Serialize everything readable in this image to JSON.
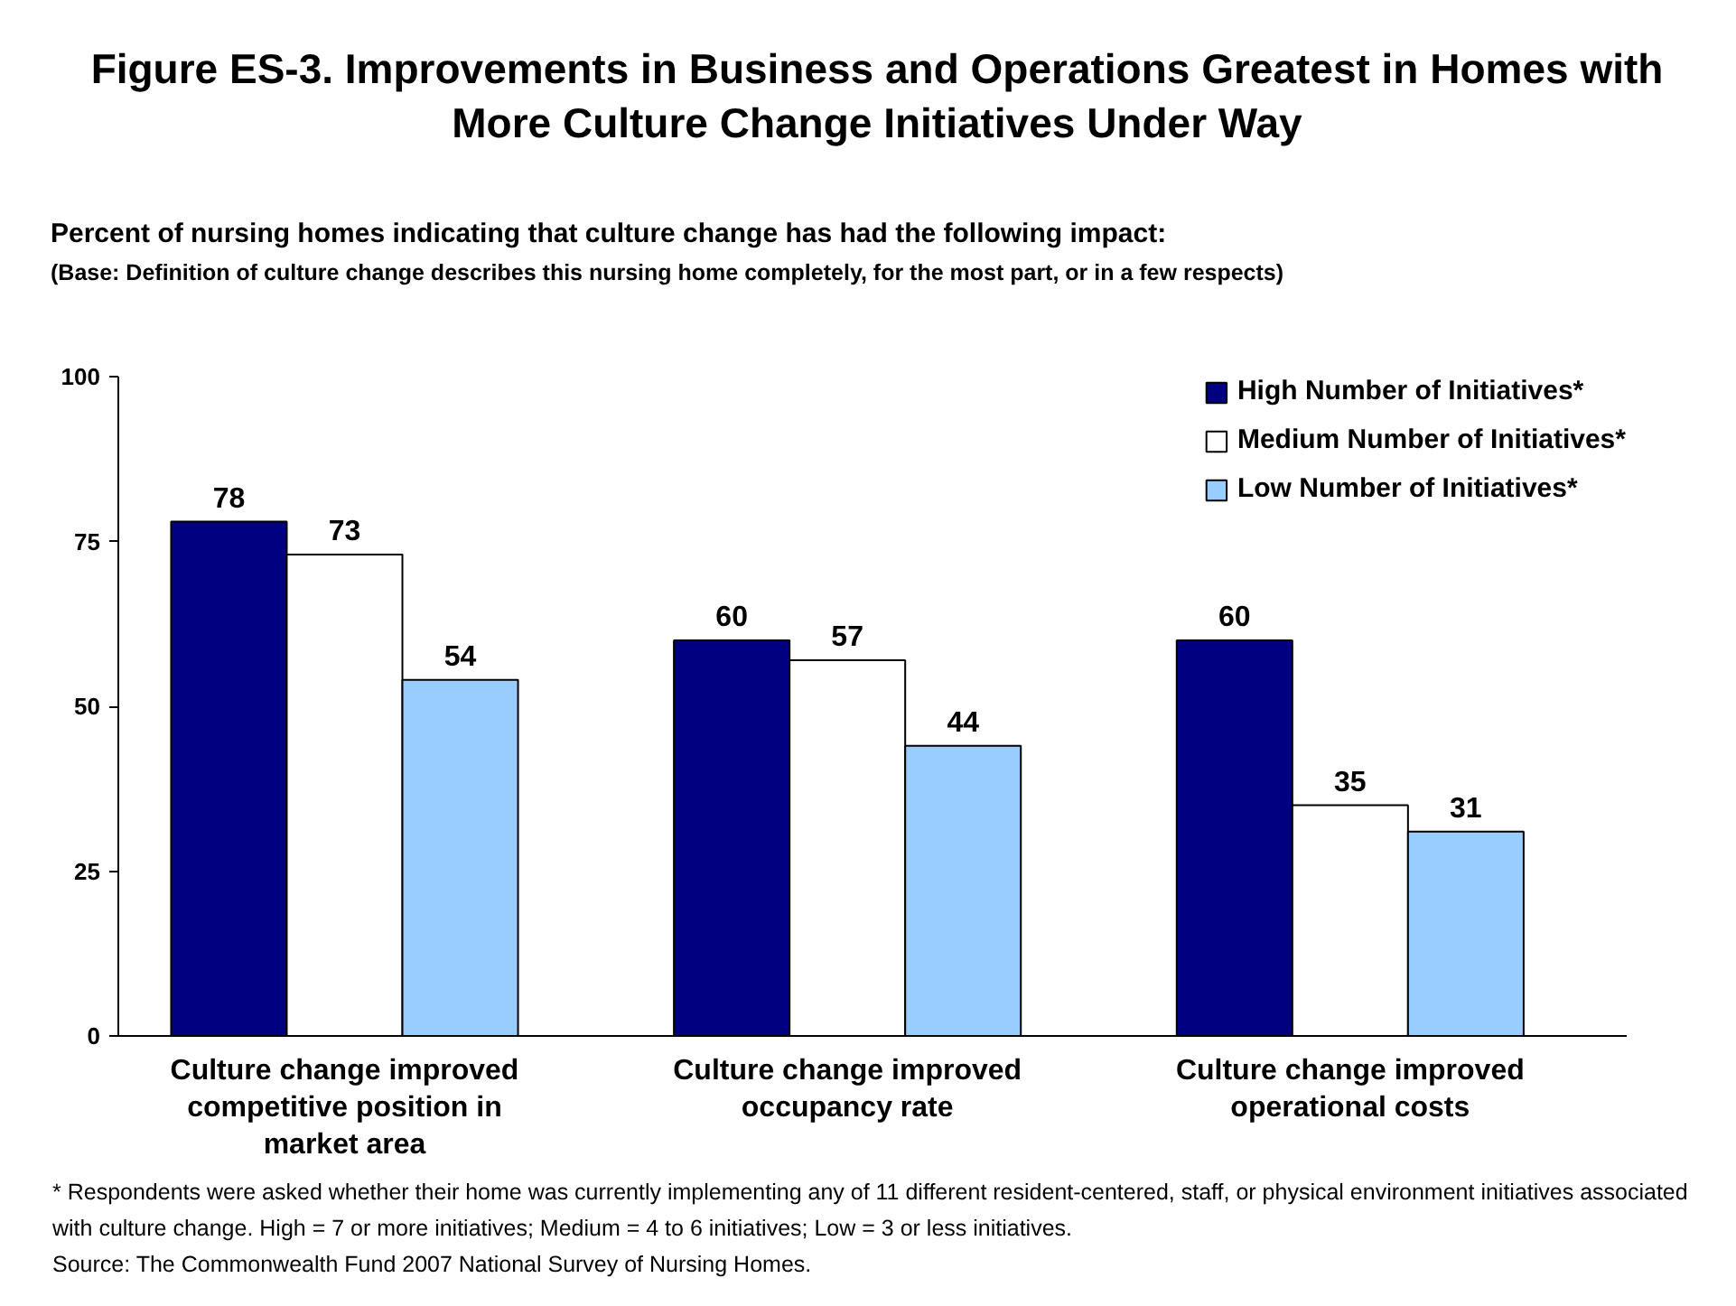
{
  "chart_data": {
    "type": "bar",
    "title": "Figure ES-3. Improvements in Business and Operations Greatest in Homes with More Culture Change Initiatives Under Way",
    "subtitle": "Percent of nursing homes indicating that culture change has had the following impact:",
    "annotations": [
      "(Base: Definition of culture change describes this nursing home completely, for the most part, or in a few respects)",
      "* Respondents were asked whether their home was currently implementing any of 11 different resident-centered, staff, or physical environment initiatives associated with culture change. High = 7 or more initiatives; Medium = 4 to 6 initiatives; Low = 3 or less initiatives.",
      "Source: The Commonwealth Fund 2007 National Survey of Nursing Homes."
    ],
    "categories": [
      "Culture change improved competitive position in market area",
      "Culture change improved occupancy rate",
      "Culture change improved operational costs"
    ],
    "series": [
      {
        "name": "High Number of Initiatives*",
        "color": "#000080",
        "values": [
          78,
          60,
          60
        ]
      },
      {
        "name": "Medium Number of Initiatives*",
        "color": "#ffffff",
        "values": [
          73,
          57,
          35
        ]
      },
      {
        "name": "Low Number of Initiatives*",
        "color": "#99ccff",
        "values": [
          54,
          44,
          31
        ]
      }
    ],
    "ylim": [
      0,
      100
    ],
    "yticks": [
      0,
      25,
      50,
      75,
      100
    ],
    "data_labels": true,
    "grid": false,
    "legend": "top right"
  }
}
